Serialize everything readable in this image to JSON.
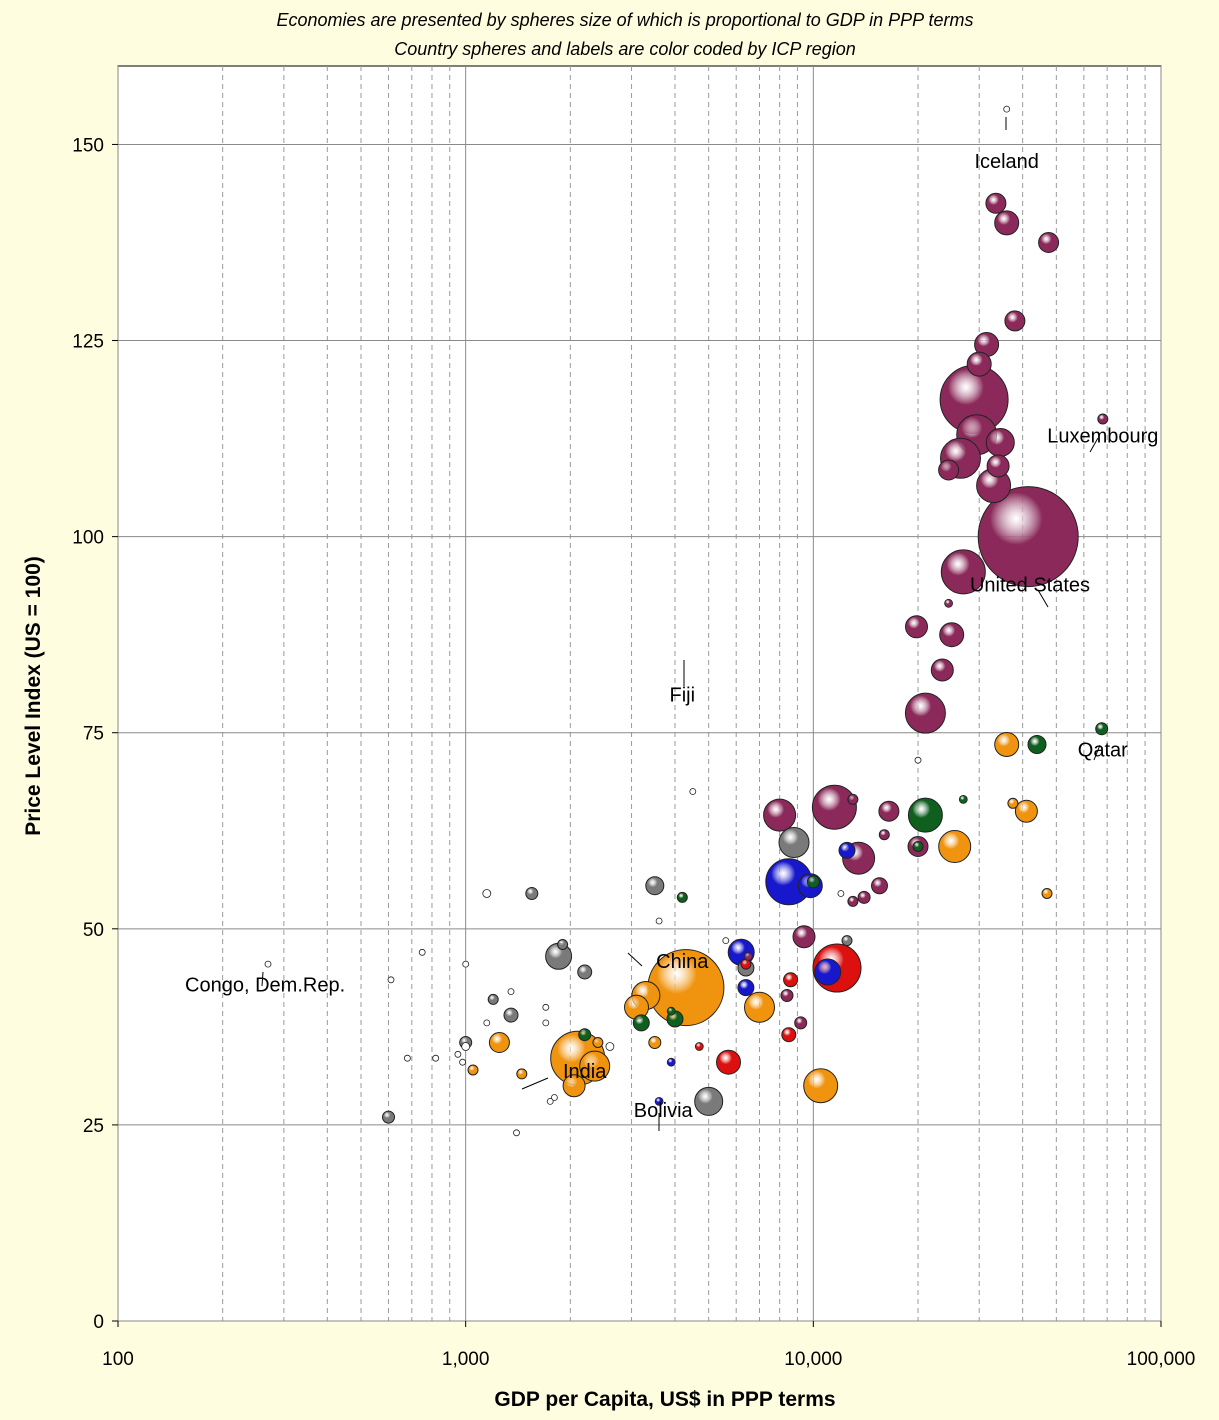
{
  "chart_data": {
    "type": "scatter",
    "subtitle_lines": [
      "Economies are presented by spheres size of which is proportional to GDP in PPP terms",
      "Country spheres and labels are color coded by ICP region"
    ],
    "xlabel": "GDP per Capita, US$ in PPP terms",
    "ylabel": "Price Level Index (US = 100)",
    "x_scale": "log",
    "xlim": [
      100,
      100000
    ],
    "ylim": [
      0,
      160
    ],
    "x_ticks": [
      100,
      1000,
      10000,
      100000
    ],
    "x_tick_labels": [
      "100",
      "1,000",
      "10,000",
      "100,000"
    ],
    "y_ticks": [
      0,
      25,
      50,
      75,
      100,
      125,
      150
    ],
    "y_tick_labels": [
      "0",
      "25",
      "50",
      "75",
      "100",
      "125",
      "150"
    ],
    "grid": true,
    "region_colors": {
      "eurostat_oecd": "#8b2a5a",
      "asia_pacific": "#f0930f",
      "africa": "#ffffff",
      "cis": "#7a7a7a",
      "south_america": "#1717cc",
      "western_asia": "#0f5f1f",
      "latin_america": "#dd1010",
      "other": "#804060"
    },
    "annotations": [
      {
        "text": "Iceland",
        "x": 36000,
        "y": 148
      },
      {
        "text": "Luxembourg",
        "x": 68000,
        "y": 113
      },
      {
        "text": "United States",
        "x": 42000,
        "y": 94
      },
      {
        "text": "Fiji",
        "x": 4200,
        "y": 80
      },
      {
        "text": "Qatar",
        "x": 68000,
        "y": 73
      },
      {
        "text": "China",
        "x": 4200,
        "y": 46
      },
      {
        "text": "Congo, Dem.Rep.",
        "x": 265,
        "y": 43
      },
      {
        "text": "India",
        "x": 2200,
        "y": 32
      },
      {
        "text": "Bolivia",
        "x": 3700,
        "y": 27
      }
    ],
    "points": [
      {
        "x": 36000,
        "y": 154.5,
        "r": 3,
        "region": "africa"
      },
      {
        "x": 33500,
        "y": 142.5,
        "r": 10,
        "region": "eurostat_oecd"
      },
      {
        "x": 36000,
        "y": 140,
        "r": 12,
        "region": "eurostat_oecd"
      },
      {
        "x": 47500,
        "y": 137.5,
        "r": 10,
        "region": "eurostat_oecd"
      },
      {
        "x": 38000,
        "y": 127.5,
        "r": 10,
        "region": "eurostat_oecd"
      },
      {
        "x": 31500,
        "y": 124.5,
        "r": 12,
        "region": "eurostat_oecd"
      },
      {
        "x": 30000,
        "y": 122,
        "r": 12,
        "region": "eurostat_oecd"
      },
      {
        "x": 29000,
        "y": 117.5,
        "r": 34,
        "region": "eurostat_oecd"
      },
      {
        "x": 29500,
        "y": 113,
        "r": 20,
        "region": "eurostat_oecd"
      },
      {
        "x": 34500,
        "y": 112,
        "r": 14,
        "region": "eurostat_oecd"
      },
      {
        "x": 68000,
        "y": 115,
        "r": 5,
        "region": "eurostat_oecd"
      },
      {
        "x": 26500,
        "y": 110,
        "r": 20,
        "region": "eurostat_oecd"
      },
      {
        "x": 24500,
        "y": 108.5,
        "r": 10,
        "region": "eurostat_oecd"
      },
      {
        "x": 34000,
        "y": 109,
        "r": 11,
        "region": "eurostat_oecd"
      },
      {
        "x": 33000,
        "y": 106.5,
        "r": 17,
        "region": "eurostat_oecd"
      },
      {
        "x": 41500,
        "y": 100,
        "r": 50,
        "region": "eurostat_oecd"
      },
      {
        "x": 27000,
        "y": 95.5,
        "r": 22,
        "region": "eurostat_oecd"
      },
      {
        "x": 24500,
        "y": 91.5,
        "r": 4,
        "region": "eurostat_oecd"
      },
      {
        "x": 19800,
        "y": 88.5,
        "r": 11,
        "region": "eurostat_oecd"
      },
      {
        "x": 25000,
        "y": 87.5,
        "r": 12,
        "region": "eurostat_oecd"
      },
      {
        "x": 23500,
        "y": 83,
        "r": 11,
        "region": "eurostat_oecd"
      },
      {
        "x": 21000,
        "y": 77.5,
        "r": 20,
        "region": "eurostat_oecd"
      },
      {
        "x": 20000,
        "y": 71.5,
        "r": 3,
        "region": "africa"
      },
      {
        "x": 67500,
        "y": 75.5,
        "r": 6,
        "region": "western_asia"
      },
      {
        "x": 36000,
        "y": 73.5,
        "r": 12,
        "region": "asia_pacific"
      },
      {
        "x": 44000,
        "y": 73.5,
        "r": 9,
        "region": "western_asia"
      },
      {
        "x": 27000,
        "y": 66.5,
        "r": 4,
        "region": "western_asia"
      },
      {
        "x": 37500,
        "y": 66,
        "r": 5,
        "region": "asia_pacific"
      },
      {
        "x": 41000,
        "y": 65,
        "r": 11,
        "region": "asia_pacific"
      },
      {
        "x": 11500,
        "y": 65.5,
        "r": 22,
        "region": "eurostat_oecd"
      },
      {
        "x": 13000,
        "y": 66.5,
        "r": 5,
        "region": "eurostat_oecd"
      },
      {
        "x": 8000,
        "y": 64.5,
        "r": 16,
        "region": "eurostat_oecd"
      },
      {
        "x": 16500,
        "y": 65,
        "r": 10,
        "region": "eurostat_oecd"
      },
      {
        "x": 21000,
        "y": 64.5,
        "r": 17,
        "region": "western_asia"
      },
      {
        "x": 8800,
        "y": 61,
        "r": 15,
        "region": "cis"
      },
      {
        "x": 16000,
        "y": 62,
        "r": 5,
        "region": "eurostat_oecd"
      },
      {
        "x": 20000,
        "y": 60.5,
        "r": 10,
        "region": "eurostat_oecd"
      },
      {
        "x": 20000,
        "y": 60.5,
        "r": 5,
        "region": "western_asia"
      },
      {
        "x": 25500,
        "y": 60.5,
        "r": 16,
        "region": "asia_pacific"
      },
      {
        "x": 12500,
        "y": 60,
        "r": 8,
        "region": "south_america"
      },
      {
        "x": 13500,
        "y": 59,
        "r": 16,
        "region": "eurostat_oecd"
      },
      {
        "x": 8500,
        "y": 56,
        "r": 23,
        "region": "south_america"
      },
      {
        "x": 9800,
        "y": 55.5,
        "r": 12,
        "region": "south_america"
      },
      {
        "x": 10000,
        "y": 56,
        "r": 6,
        "region": "western_asia"
      },
      {
        "x": 12000,
        "y": 54.5,
        "r": 3,
        "region": "africa"
      },
      {
        "x": 15500,
        "y": 55.5,
        "r": 8,
        "region": "eurostat_oecd"
      },
      {
        "x": 13000,
        "y": 53.5,
        "r": 5,
        "region": "eurostat_oecd"
      },
      {
        "x": 14000,
        "y": 54,
        "r": 6,
        "region": "eurostat_oecd"
      },
      {
        "x": 47000,
        "y": 54.5,
        "r": 5,
        "region": "asia_pacific"
      },
      {
        "x": 3500,
        "y": 55.5,
        "r": 9,
        "region": "cis"
      },
      {
        "x": 4200,
        "y": 54,
        "r": 5,
        "region": "western_asia"
      },
      {
        "x": 1550,
        "y": 54.5,
        "r": 6,
        "region": "cis"
      },
      {
        "x": 1150,
        "y": 54.5,
        "r": 4,
        "region": "africa"
      },
      {
        "x": 3600,
        "y": 51,
        "r": 3,
        "region": "africa"
      },
      {
        "x": 4500,
        "y": 67.5,
        "r": 3,
        "region": "africa"
      },
      {
        "x": 9400,
        "y": 49,
        "r": 11,
        "region": "eurostat_oecd"
      },
      {
        "x": 12500,
        "y": 48.5,
        "r": 5,
        "region": "cis"
      },
      {
        "x": 6200,
        "y": 47,
        "r": 13,
        "region": "south_america"
      },
      {
        "x": 5600,
        "y": 48.5,
        "r": 3,
        "region": "africa"
      },
      {
        "x": 6500,
        "y": 46.5,
        "r": 4,
        "region": "eurostat_oecd"
      },
      {
        "x": 6400,
        "y": 45.5,
        "r": 5,
        "region": "latin_america"
      },
      {
        "x": 6400,
        "y": 45,
        "r": 8,
        "region": "cis"
      },
      {
        "x": 11700,
        "y": 45,
        "r": 24,
        "region": "latin_america"
      },
      {
        "x": 11000,
        "y": 44.5,
        "r": 13,
        "region": "south_america"
      },
      {
        "x": 8600,
        "y": 43.5,
        "r": 7,
        "region": "latin_america"
      },
      {
        "x": 8400,
        "y": 41.5,
        "r": 6,
        "region": "eurostat_oecd"
      },
      {
        "x": 6400,
        "y": 42.5,
        "r": 8,
        "region": "south_america"
      },
      {
        "x": 7000,
        "y": 40,
        "r": 15,
        "region": "asia_pacific"
      },
      {
        "x": 9200,
        "y": 38,
        "r": 6,
        "region": "eurostat_oecd"
      },
      {
        "x": 8500,
        "y": 36.5,
        "r": 7,
        "region": "latin_america"
      },
      {
        "x": 4300,
        "y": 42.5,
        "r": 38,
        "region": "asia_pacific"
      },
      {
        "x": 3300,
        "y": 41.5,
        "r": 14,
        "region": "asia_pacific"
      },
      {
        "x": 3100,
        "y": 40,
        "r": 12,
        "region": "asia_pacific"
      },
      {
        "x": 3900,
        "y": 39.5,
        "r": 4,
        "region": "western_asia"
      },
      {
        "x": 4000,
        "y": 38.5,
        "r": 8,
        "region": "western_asia"
      },
      {
        "x": 3200,
        "y": 38,
        "r": 8,
        "region": "western_asia"
      },
      {
        "x": 3500,
        "y": 35.5,
        "r": 6,
        "region": "asia_pacific"
      },
      {
        "x": 1850,
        "y": 46.5,
        "r": 13,
        "region": "cis"
      },
      {
        "x": 1900,
        "y": 48,
        "r": 5,
        "region": "cis"
      },
      {
        "x": 2200,
        "y": 44.5,
        "r": 7,
        "region": "cis"
      },
      {
        "x": 1200,
        "y": 41,
        "r": 5,
        "region": "cis"
      },
      {
        "x": 1350,
        "y": 39,
        "r": 7,
        "region": "cis"
      },
      {
        "x": 1700,
        "y": 38,
        "r": 3,
        "region": "africa"
      },
      {
        "x": 2200,
        "y": 36.5,
        "r": 6,
        "region": "western_asia"
      },
      {
        "x": 2400,
        "y": 35.5,
        "r": 5,
        "region": "asia_pacific"
      },
      {
        "x": 2600,
        "y": 35,
        "r": 4,
        "region": "africa"
      },
      {
        "x": 2100,
        "y": 33.5,
        "r": 27,
        "region": "asia_pacific"
      },
      {
        "x": 2350,
        "y": 32.5,
        "r": 15,
        "region": "asia_pacific"
      },
      {
        "x": 2050,
        "y": 30,
        "r": 11,
        "region": "asia_pacific"
      },
      {
        "x": 1250,
        "y": 35.5,
        "r": 10,
        "region": "asia_pacific"
      },
      {
        "x": 1000,
        "y": 35.5,
        "r": 6,
        "region": "cis"
      },
      {
        "x": 1000,
        "y": 35,
        "r": 4,
        "region": "africa"
      },
      {
        "x": 1050,
        "y": 32,
        "r": 5,
        "region": "asia_pacific"
      },
      {
        "x": 1450,
        "y": 31.5,
        "r": 5,
        "region": "asia_pacific"
      },
      {
        "x": 5700,
        "y": 33,
        "r": 12,
        "region": "latin_america"
      },
      {
        "x": 4700,
        "y": 35,
        "r": 4,
        "region": "latin_america"
      },
      {
        "x": 3900,
        "y": 33,
        "r": 4,
        "region": "south_america"
      },
      {
        "x": 5000,
        "y": 28,
        "r": 14,
        "region": "cis"
      },
      {
        "x": 3600,
        "y": 28,
        "r": 4,
        "region": "south_america"
      },
      {
        "x": 10500,
        "y": 30,
        "r": 17,
        "region": "asia_pacific"
      },
      {
        "x": 600,
        "y": 26,
        "r": 6,
        "region": "cis"
      },
      {
        "x": 270,
        "y": 45.5,
        "r": 3,
        "region": "africa"
      },
      {
        "x": 610,
        "y": 43.5,
        "r": 3,
        "region": "africa"
      },
      {
        "x": 750,
        "y": 47,
        "r": 3,
        "region": "africa"
      },
      {
        "x": 1000,
        "y": 45.5,
        "r": 3,
        "region": "africa"
      },
      {
        "x": 1350,
        "y": 42,
        "r": 3,
        "region": "africa"
      },
      {
        "x": 1700,
        "y": 40,
        "r": 3,
        "region": "africa"
      },
      {
        "x": 1150,
        "y": 38,
        "r": 3,
        "region": "africa"
      },
      {
        "x": 680,
        "y": 33.5,
        "r": 3,
        "region": "africa"
      },
      {
        "x": 820,
        "y": 33.5,
        "r": 3,
        "region": "africa"
      },
      {
        "x": 950,
        "y": 34,
        "r": 3,
        "region": "africa"
      },
      {
        "x": 980,
        "y": 33,
        "r": 3,
        "region": "africa"
      },
      {
        "x": 1400,
        "y": 24,
        "r": 3,
        "region": "africa"
      },
      {
        "x": 1800,
        "y": 28.5,
        "r": 3,
        "region": "africa"
      },
      {
        "x": 1750,
        "y": 28,
        "r": 3,
        "region": "africa"
      }
    ]
  }
}
